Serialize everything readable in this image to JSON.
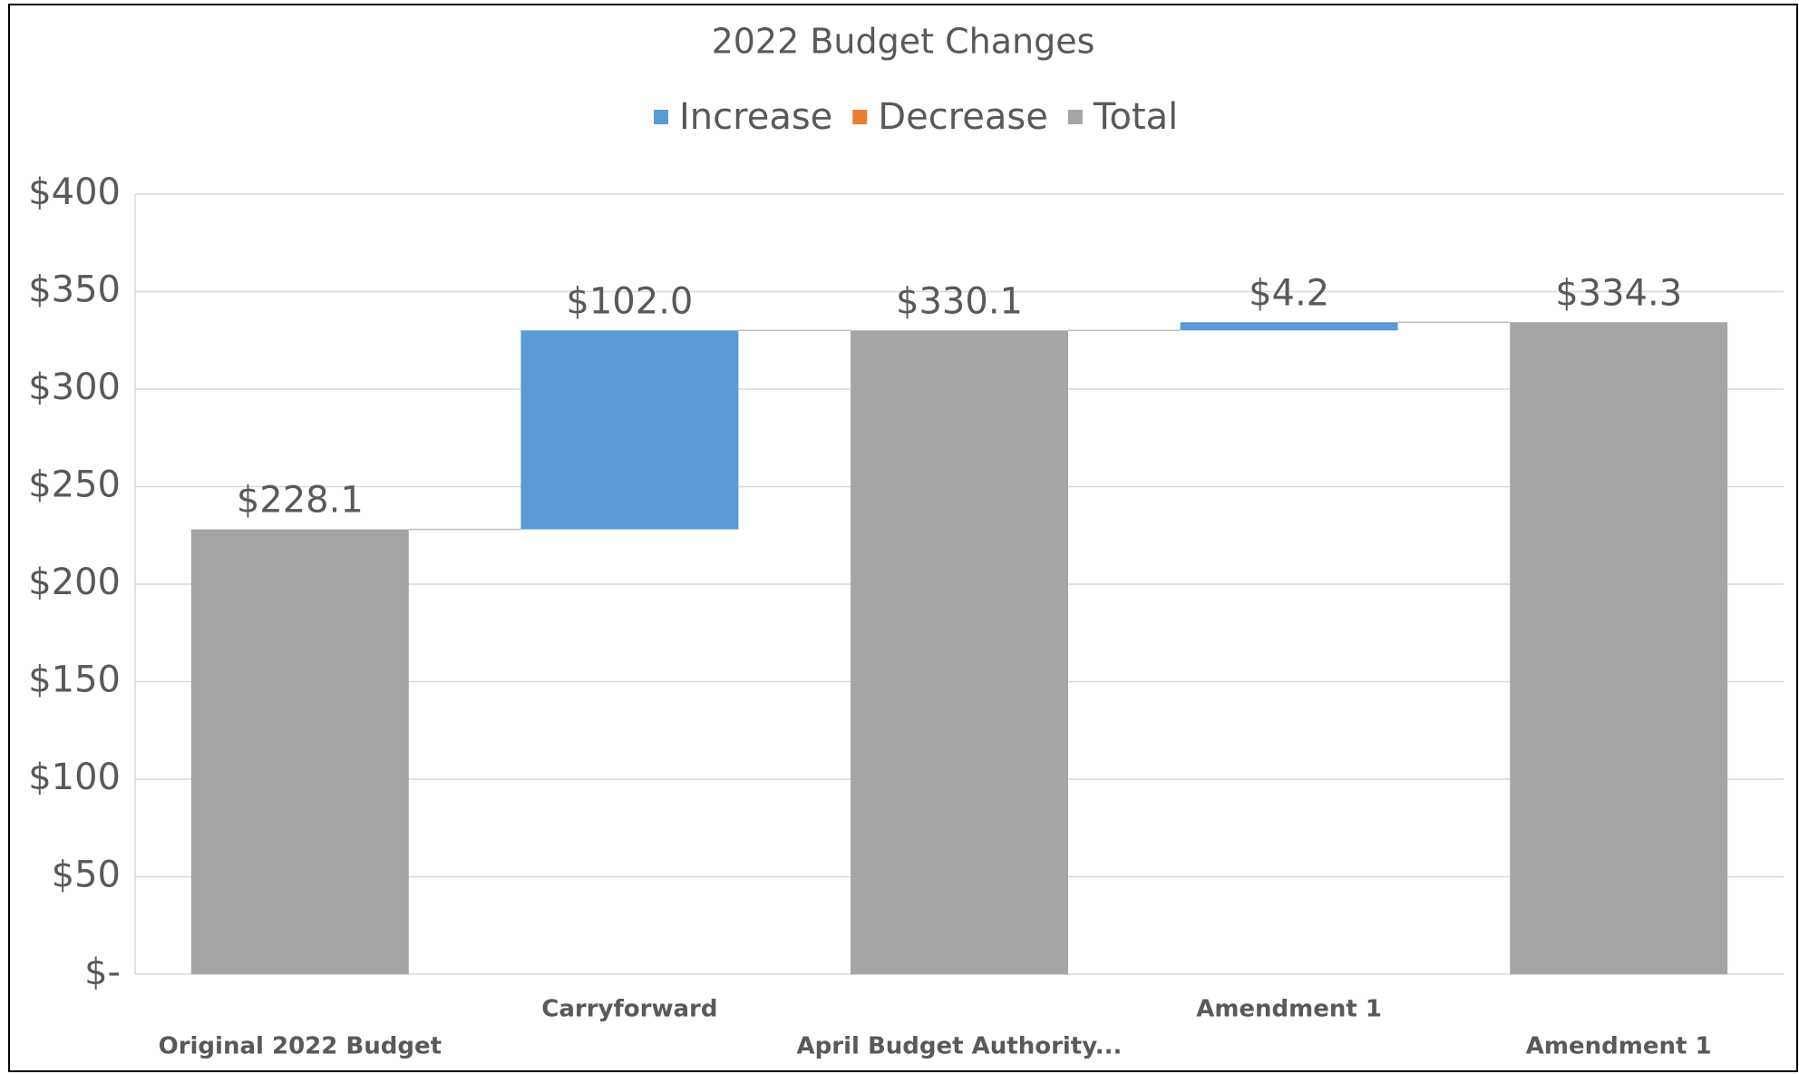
{
  "chart_data": {
    "type": "waterfall",
    "title": "2022 Budget Changes",
    "categories": [
      "Original 2022 Budget",
      "Carryforward",
      "April Budget Authority...",
      "Amendment 1",
      "Amendment 1"
    ],
    "series": [
      {
        "name": "Increase",
        "color": "#5b9bd5",
        "values": [
          null,
          102.0,
          null,
          4.2,
          null
        ],
        "value_labels": [
          null,
          "$102.0",
          null,
          "$4.2",
          null
        ]
      },
      {
        "name": "Decrease",
        "color": "#ed7d31",
        "values": [
          null,
          null,
          null,
          null,
          null
        ],
        "value_labels": [
          null,
          null,
          null,
          null,
          null
        ]
      },
      {
        "name": "Total",
        "color": "#a5a5a5",
        "values": [
          228.1,
          null,
          330.1,
          null,
          334.3
        ],
        "value_labels": [
          "$228.1",
          null,
          "$330.1",
          null,
          "$334.3"
        ]
      }
    ],
    "ylim": [
      0,
      400
    ],
    "yticks": [
      {
        "value": 0,
        "label": "$-"
      },
      {
        "value": 50,
        "label": "$50"
      },
      {
        "value": 100,
        "label": "$100"
      },
      {
        "value": 150,
        "label": "$150"
      },
      {
        "value": 200,
        "label": "$200"
      },
      {
        "value": 250,
        "label": "$250"
      },
      {
        "value": 300,
        "label": "$300"
      },
      {
        "value": 350,
        "label": "$350"
      },
      {
        "value": 400,
        "label": "$400"
      }
    ],
    "grid": true
  }
}
